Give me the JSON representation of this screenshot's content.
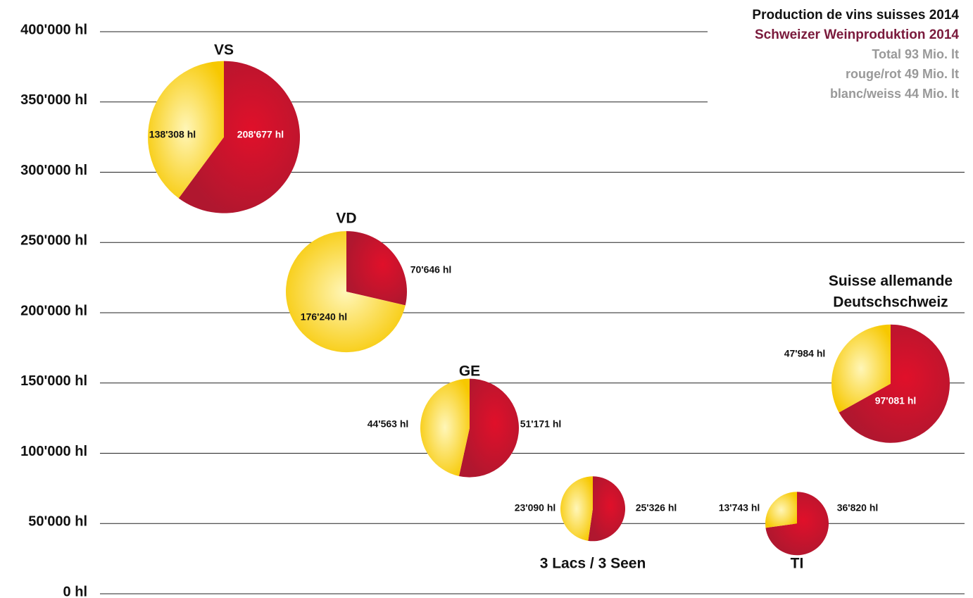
{
  "chart_data": {
    "type": "pie-bubble",
    "title": "Production de vins suisses 2014",
    "subtitle": "Schweizer Weinproduktion 2014",
    "notes": [
      "Total 93 Mio. lt",
      "rouge/rot 49 Mio. lt",
      "blanc/weiss 44 Mio. lt"
    ],
    "colors": [
      "#b5172f",
      "#f7cb00"
    ],
    "ylim": [
      0,
      400000
    ],
    "yticks": [
      {
        "value": 0,
        "label": "0 hl"
      },
      {
        "value": 50000,
        "label": "50'000 hl"
      },
      {
        "value": 100000,
        "label": "100'000 hl"
      },
      {
        "value": 150000,
        "label": "150'000 hl"
      },
      {
        "value": 200000,
        "label": "200'000 hl"
      },
      {
        "value": 250000,
        "label": "250'000 hl"
      },
      {
        "value": 300000,
        "label": "300'000 hl"
      },
      {
        "value": 350000,
        "label": "350'000 hl"
      },
      {
        "value": 400000,
        "label": "400'000 hl"
      }
    ],
    "pies": [
      {
        "label": [
          "VS"
        ],
        "y": 325000,
        "values": [
          208677,
          138308
        ],
        "value_labels": [
          "208'677 hl",
          "138'308 hl"
        ]
      },
      {
        "label": [
          "VD"
        ],
        "y": 215000,
        "values": [
          70646,
          176240
        ],
        "value_labels": [
          "70'646 hl",
          "176'240 hl"
        ]
      },
      {
        "label": [
          "GE"
        ],
        "y": 118000,
        "values": [
          51171,
          44563
        ],
        "value_labels": [
          "51'171 hl",
          "44'563 hl"
        ]
      },
      {
        "label": [
          "3 Lacs / 3 Seen"
        ],
        "y": 60500,
        "values": [
          25326,
          23090
        ],
        "value_labels": [
          "25'326 hl",
          "23'090 hl"
        ]
      },
      {
        "label": [
          "TI"
        ],
        "y": 50000,
        "values": [
          36820,
          13743
        ],
        "value_labels": [
          "36'820 hl",
          "13'743 hl"
        ]
      },
      {
        "label": [
          "Suisse allemande",
          "Deutschschweiz"
        ],
        "y": 149500,
        "values": [
          97081,
          47984
        ],
        "value_labels": [
          "97'081 hl",
          "47'984 hl"
        ]
      }
    ]
  }
}
